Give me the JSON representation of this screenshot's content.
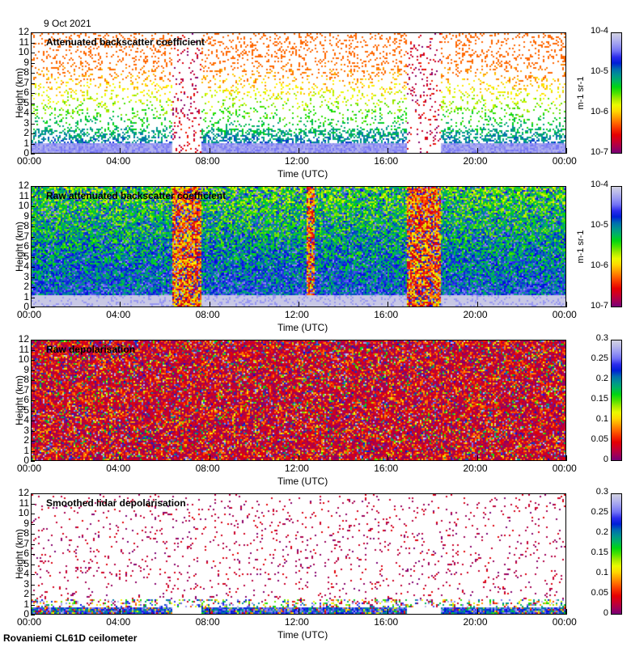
{
  "header": {
    "date": "9 Oct 2021"
  },
  "footer": {
    "station": "Rovaniemi CL61D ceilometer"
  },
  "chart_data": [
    {
      "type": "heatmap",
      "title": "Attenuated backscatter coefficient",
      "xlabel": "Time (UTC)",
      "ylabel": "Height (km)",
      "xticks": [
        "00:00",
        "04:00",
        "08:00",
        "12:00",
        "16:00",
        "20:00",
        "00:00"
      ],
      "yticks": [
        "0",
        "1",
        "2",
        "3",
        "4",
        "5",
        "6",
        "7",
        "8",
        "9",
        "10",
        "11",
        "12"
      ],
      "ylim": [
        0,
        12
      ],
      "colorbar": {
        "scale": "log",
        "unit": "m-1 sr-1",
        "ticks": [
          "10-7",
          "10-6",
          "10-5",
          "10-4"
        ],
        "range": [
          1e-07,
          0.0001
        ]
      },
      "style": "sparse"
    },
    {
      "type": "heatmap",
      "title": "Raw attenuated backscatter coefficient",
      "xlabel": "Time (UTC)",
      "ylabel": "Height (km)",
      "xticks": [
        "00:00",
        "04:00",
        "08:00",
        "12:00",
        "16:00",
        "20:00",
        "00:00"
      ],
      "yticks": [
        "0",
        "1",
        "2",
        "3",
        "4",
        "5",
        "6",
        "7",
        "8",
        "9",
        "10",
        "11",
        "12"
      ],
      "ylim": [
        0,
        12
      ],
      "colorbar": {
        "scale": "log",
        "unit": "m-1 sr-1",
        "ticks": [
          "10-7",
          "10-6",
          "10-5",
          "10-4"
        ],
        "range": [
          1e-07,
          0.0001
        ]
      },
      "style": "dense"
    },
    {
      "type": "heatmap",
      "title": "Raw depolarisation",
      "xlabel": "Time (UTC)",
      "ylabel": "Height (km)",
      "xticks": [
        "00:00",
        "04:00",
        "08:00",
        "12:00",
        "16:00",
        "20:00",
        "00:00"
      ],
      "yticks": [
        "0",
        "1",
        "2",
        "3",
        "4",
        "5",
        "6",
        "7",
        "8",
        "9",
        "10",
        "11",
        "12"
      ],
      "ylim": [
        0,
        12
      ],
      "colorbar": {
        "scale": "linear",
        "unit": "",
        "ticks": [
          "0",
          "0.05",
          "0.1",
          "0.15",
          "0.2",
          "0.25",
          "0.3"
        ],
        "range": [
          0,
          0.3
        ]
      },
      "style": "noise"
    },
    {
      "type": "heatmap",
      "title": "Smoothed lidar depolarisation",
      "xlabel": "Time (UTC)",
      "ylabel": "Height (km)",
      "xticks": [
        "00:00",
        "04:00",
        "08:00",
        "12:00",
        "16:00",
        "20:00",
        "00:00"
      ],
      "yticks": [
        "0",
        "1",
        "2",
        "3",
        "4",
        "5",
        "6",
        "7",
        "8",
        "9",
        "10",
        "11",
        "12"
      ],
      "ylim": [
        0,
        12
      ],
      "colorbar": {
        "scale": "linear",
        "unit": "",
        "ticks": [
          "0",
          "0.05",
          "0.1",
          "0.15",
          "0.2",
          "0.25",
          "0.3"
        ],
        "range": [
          0,
          0.3
        ]
      },
      "style": "sparsedepol"
    }
  ]
}
